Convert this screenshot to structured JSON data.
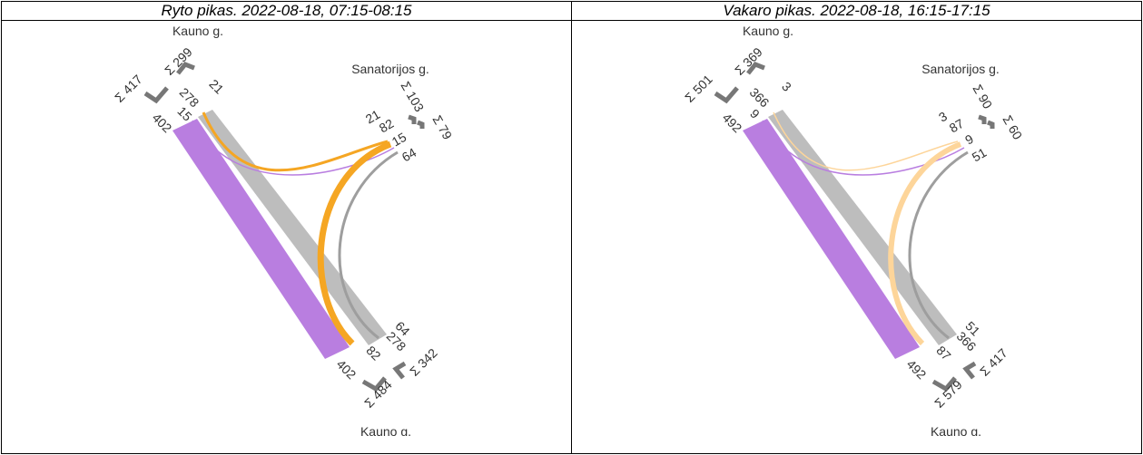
{
  "panels": [
    {
      "title": "Ryto pikas. 2022-08-18, 07:15-08:15",
      "north": {
        "street": "Kauno g.",
        "sum_a": "Σ 417",
        "sum_b": "Σ 299",
        "flows": [
          402,
          15,
          278,
          21
        ]
      },
      "east": {
        "street": "Sanatorijos g.",
        "sum_a": "Σ 103",
        "sum_b": "Σ 79",
        "flows": [
          21,
          82,
          15,
          64
        ]
      },
      "south": {
        "street": "Kauno g.",
        "sum_a": "Σ 484",
        "sum_b": "Σ 342",
        "flows": [
          402,
          82,
          278,
          64
        ]
      }
    },
    {
      "title": "Vakaro pikas. 2022-08-18, 16:15-17:15",
      "north": {
        "street": "Kauno g.",
        "sum_a": "Σ 501",
        "sum_b": "Σ 369",
        "flows": [
          492,
          9,
          366,
          3
        ]
      },
      "east": {
        "street": "Sanatorijos g.",
        "sum_a": "Σ 90",
        "sum_b": "Σ 60",
        "flows": [
          3,
          87,
          9,
          51
        ]
      },
      "south": {
        "street": "Kauno g.",
        "sum_a": "Σ 579",
        "sum_b": "Σ 417",
        "flows": [
          492,
          87,
          366,
          51
        ]
      }
    }
  ]
}
